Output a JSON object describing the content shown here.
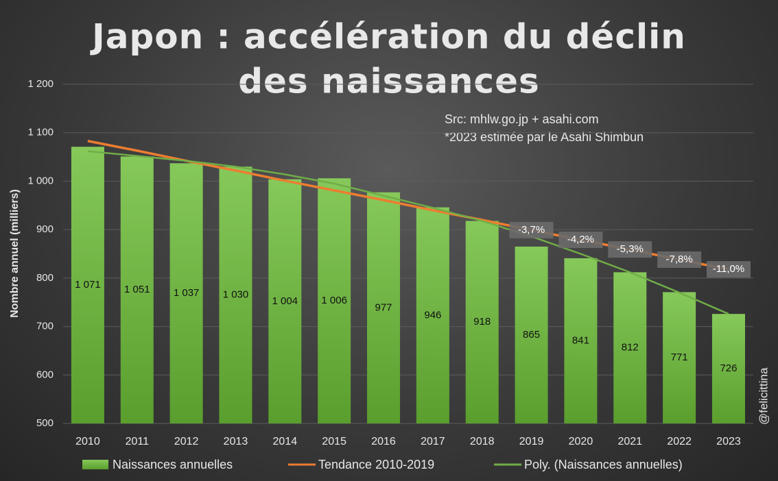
{
  "chart_data": {
    "type": "bar",
    "title": [
      "Japon : accélération du déclin",
      "des naissances"
    ],
    "annotations_text": [
      "Src: mhlw.go.jp + asahi.com",
      "*2023 estimée par le Asahi Shimbun"
    ],
    "watermark": "@felicittina",
    "y_label": "Nombre annuel (milliers)",
    "categories": [
      "2010",
      "2011",
      "2012",
      "2013",
      "2014",
      "2015",
      "2016",
      "2017",
      "2018",
      "2019",
      "2020",
      "2021",
      "2022",
      "2023"
    ],
    "series": [
      {
        "name": "Naissances annuelles",
        "type": "bar",
        "color": "#6cb33f",
        "values": [
          1071,
          1051,
          1037,
          1030,
          1004,
          1006,
          977,
          946,
          918,
          865,
          841,
          812,
          771,
          726
        ],
        "value_labels": [
          "1 071",
          "1 051",
          "1 037",
          "1 030",
          "1 004",
          "1 006",
          "977",
          "946",
          "918",
          "865",
          "841",
          "812",
          "771",
          "726"
        ]
      },
      {
        "name": "Tendance 2010-2019",
        "type": "line",
        "color": "#ed7d31",
        "values": [
          1083,
          1063,
          1042,
          1022,
          1001,
          981,
          961,
          940,
          920,
          899,
          879,
          859,
          838,
          818
        ]
      },
      {
        "name": "Poly. (Naissances annuelles)",
        "type": "line",
        "color": "#70ad47",
        "values": [
          1062,
          1052,
          1042,
          1030,
          1014,
          995,
          970,
          945,
          918,
          886,
          850,
          812,
          770,
          726
        ]
      }
    ],
    "point_annotations": [
      {
        "x": "2019",
        "text": "-3,7%"
      },
      {
        "x": "2020",
        "text": "-4,2%"
      },
      {
        "x": "2021",
        "text": "-5,3%"
      },
      {
        "x": "2022",
        "text": "-7,8%"
      },
      {
        "x": "2023",
        "text": "-11,0%"
      }
    ],
    "ylim": [
      500,
      1200
    ],
    "yticks": [
      500,
      600,
      700,
      800,
      900,
      {
        "value": 1000,
        "label": "1 000"
      },
      {
        "value": 1100,
        "label": "1 100"
      },
      {
        "value": 1200,
        "label": "1 200"
      }
    ],
    "grid": true
  }
}
